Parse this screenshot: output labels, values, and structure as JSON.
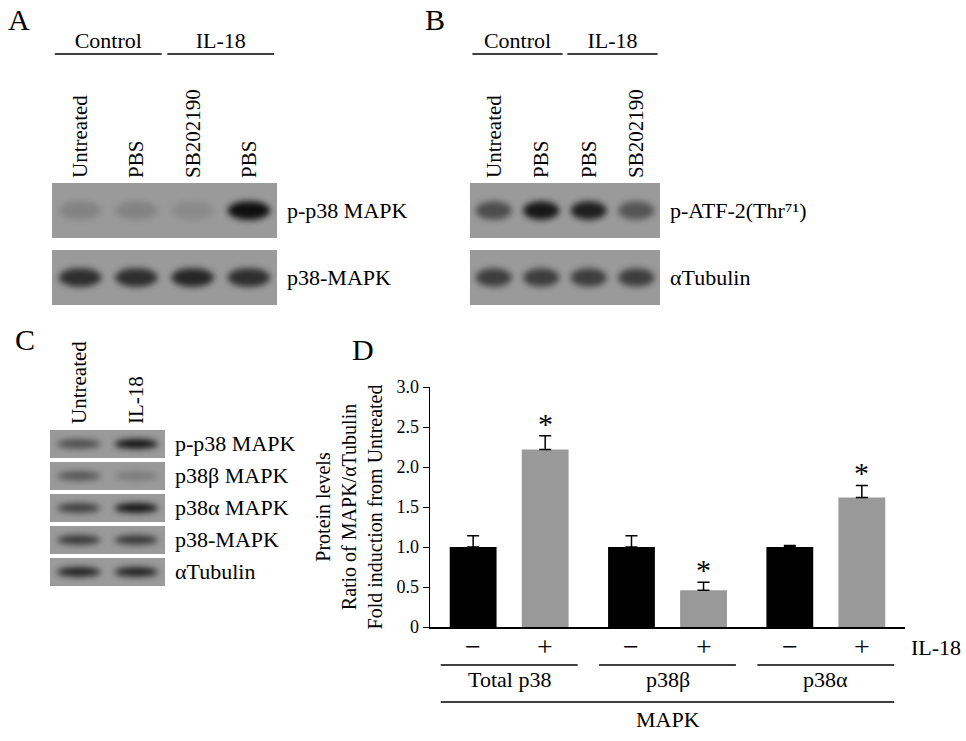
{
  "blots": [
    {
      "label": "A",
      "groups": [
        {
          "text": "Control",
          "lanes": [
            0,
            1
          ]
        },
        {
          "text": "IL-18",
          "lanes": [
            2,
            3
          ]
        }
      ],
      "lanes": [
        "Untreated",
        "PBS",
        "SB202190",
        "PBS"
      ],
      "rows": [
        {
          "label": "p-p38 MAPK",
          "intensity": [
            0.15,
            0.15,
            0.1,
            0.9
          ]
        },
        {
          "label": "p38-MAPK",
          "intensity": [
            0.7,
            0.7,
            0.75,
            0.7
          ]
        }
      ]
    },
    {
      "label": "B",
      "groups": [
        {
          "text": "Control",
          "lanes": [
            0,
            1
          ]
        },
        {
          "text": "IL-18",
          "lanes": [
            2,
            3
          ]
        }
      ],
      "lanes": [
        "Untreated",
        "PBS",
        "PBS",
        "SB202190"
      ],
      "rows": [
        {
          "label": "p-ATF-2(Thr⁷¹)",
          "intensity": [
            0.5,
            0.85,
            0.8,
            0.45
          ]
        },
        {
          "label": "αTubulin",
          "intensity": [
            0.6,
            0.6,
            0.6,
            0.6
          ]
        }
      ]
    },
    {
      "label": "C",
      "groups": [],
      "lanes": [
        "Untreated",
        "IL-18"
      ],
      "rows": [
        {
          "label": "p-p38 MAPK",
          "intensity": [
            0.5,
            0.9
          ]
        },
        {
          "label": "p38β MAPK",
          "intensity": [
            0.45,
            0.2
          ]
        },
        {
          "label": "p38α MAPK",
          "intensity": [
            0.6,
            0.9
          ]
        },
        {
          "label": "p38-MAPK",
          "intensity": [
            0.65,
            0.65
          ]
        },
        {
          "label": "αTubulin",
          "intensity": [
            0.8,
            0.8
          ]
        }
      ]
    }
  ],
  "panel_label": "D",
  "chart_data": {
    "type": "bar",
    "ylabel": [
      "Protein levels",
      "Ratio of MAPK/αTubulin",
      "Fold induction from Untreated"
    ],
    "xlabel": "MAPK",
    "series_title": "IL-18",
    "categories": [
      "Total p38",
      "p38β",
      "p38α"
    ],
    "series": [
      {
        "name": "−",
        "color": "#000000",
        "values": [
          1.0,
          1.0,
          1.0
        ],
        "errors": [
          0.14,
          0.14,
          0.02
        ]
      },
      {
        "name": "+",
        "color": "#999999",
        "values": [
          2.22,
          0.46,
          1.62
        ],
        "errors": [
          0.17,
          0.1,
          0.15
        ],
        "annotations": [
          "*",
          "*",
          "*"
        ]
      }
    ],
    "ylim": [
      0,
      3
    ],
    "yticks": [
      0,
      0.5,
      {
        "value": 1,
        "label": "1.0"
      },
      1.5,
      {
        "value": 2,
        "label": "2.0"
      },
      2.5,
      {
        "value": 3,
        "label": "3.0"
      }
    ],
    "grid": false
  }
}
